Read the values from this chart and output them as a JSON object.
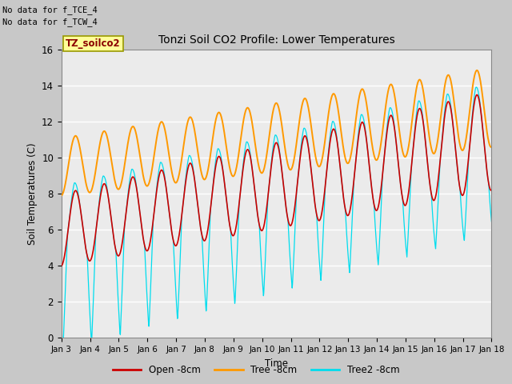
{
  "title": "Tonzi Soil CO2 Profile: Lower Temperatures",
  "xlabel": "Time",
  "ylabel": "Soil Temperatures (C)",
  "ylim": [
    0,
    16
  ],
  "annotation1": "No data for f_TCE_4",
  "annotation2": "No data for f_TCW_4",
  "box_label": "TZ_soilco2",
  "legend_labels": [
    "Open -8cm",
    "Tree -8cm",
    "Tree2 -8cm"
  ],
  "line_colors": [
    "#cc0000",
    "#ff9900",
    "#00ddee"
  ],
  "xtick_labels": [
    "Jan 3",
    "Jan 4",
    "Jan 5",
    "Jan 6",
    "Jan 7",
    "Jan 8",
    "Jan 9",
    "Jan 10",
    "Jan 11",
    "Jan 12",
    "Jan 13",
    "Jan 14",
    "Jan 15",
    "Jan 16",
    "Jan 17",
    "Jan 18"
  ],
  "plot_bg_color": "#ebebeb",
  "fig_bg_color": "#c8c8c8"
}
